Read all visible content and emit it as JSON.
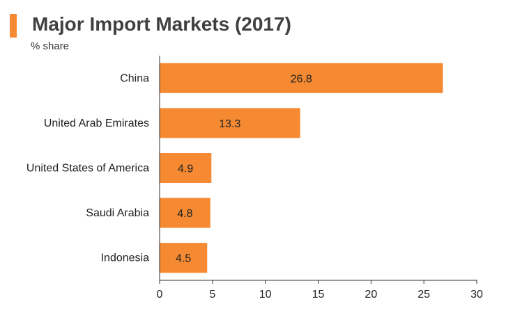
{
  "header": {
    "title": "Major Import Markets (2017)",
    "subtitle": "% share",
    "accent_color": "#F58A33"
  },
  "chart_data": {
    "type": "bar",
    "orientation": "horizontal",
    "title": "Major Import Markets (2017)",
    "subtitle": "% share",
    "categories": [
      "China",
      "United Arab Emirates",
      "United States of America",
      "Saudi Arabia",
      "Indonesia"
    ],
    "values": [
      26.8,
      13.3,
      4.9,
      4.8,
      4.5
    ],
    "value_labels": [
      "26.8",
      "13.3",
      "4.9",
      "4.8",
      "4.5"
    ],
    "xlim": [
      0,
      30
    ],
    "xticks": [
      0,
      5,
      10,
      15,
      20,
      25,
      30
    ],
    "xlabel": "",
    "ylabel": "",
    "grid": false,
    "bar_color": "#F58A33"
  }
}
